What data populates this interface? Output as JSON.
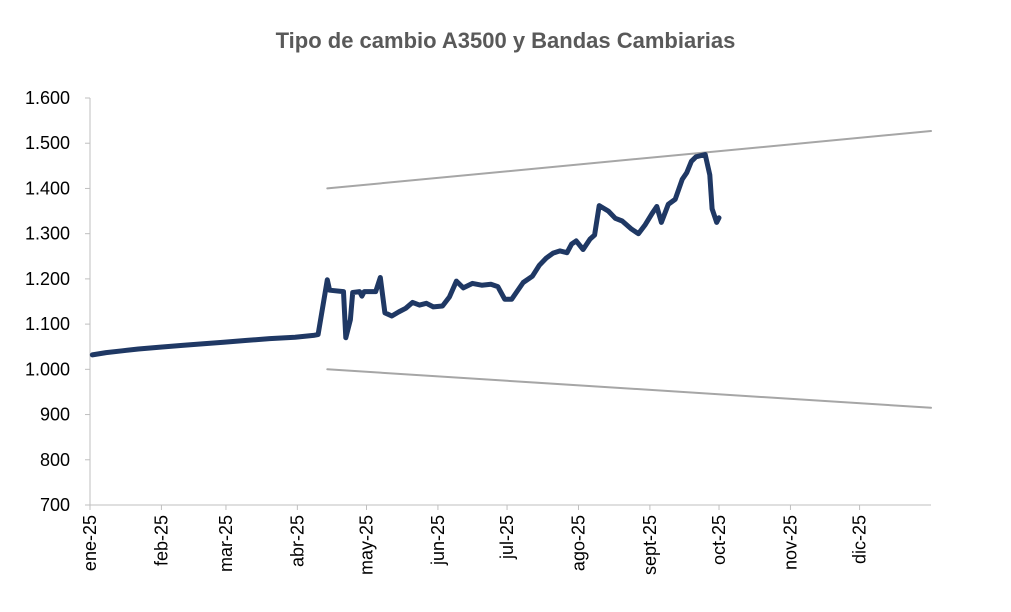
{
  "chart_data": {
    "type": "line",
    "title": "Tipo de cambio A3500 y Bandas Cambiarias",
    "xlabel": "",
    "ylabel": "",
    "ylim": [
      700,
      1600
    ],
    "y_ticks": [
      "700",
      "800",
      "900",
      "1.000",
      "1.100",
      "1.200",
      "1.300",
      "1.400",
      "1.500",
      "1.600"
    ],
    "x_ticks": [
      "ene-25",
      "feb-25",
      "mar-25",
      "abr-25",
      "may-25",
      "jun-25",
      "jul-25",
      "ago-25",
      "sept-25",
      "oct-25",
      "nov-25",
      "dic-25"
    ],
    "x_domain": [
      "2025-01-01",
      "2026-01-01"
    ],
    "legend": "none",
    "grid": false,
    "series": [
      {
        "color": "#1f3864",
        "points": [
          [
            "2025-01-02",
            1032
          ],
          [
            "2025-01-08",
            1037
          ],
          [
            "2025-01-15",
            1041
          ],
          [
            "2025-01-22",
            1045
          ],
          [
            "2025-01-31",
            1049
          ],
          [
            "2025-02-10",
            1053
          ],
          [
            "2025-02-20",
            1057
          ],
          [
            "2025-02-28",
            1060
          ],
          [
            "2025-03-10",
            1064
          ],
          [
            "2025-03-20",
            1068
          ],
          [
            "2025-03-31",
            1071
          ],
          [
            "2025-04-08",
            1075
          ],
          [
            "2025-04-10",
            1077
          ],
          [
            "2025-04-14",
            1198
          ],
          [
            "2025-04-15",
            1175
          ],
          [
            "2025-04-21",
            1172
          ],
          [
            "2025-04-22",
            1070
          ],
          [
            "2025-04-24",
            1110
          ],
          [
            "2025-04-25",
            1170
          ],
          [
            "2025-04-28",
            1172
          ],
          [
            "2025-04-29",
            1162
          ],
          [
            "2025-04-30",
            1172
          ],
          [
            "2025-05-05",
            1172
          ],
          [
            "2025-05-07",
            1203
          ],
          [
            "2025-05-09",
            1125
          ],
          [
            "2025-05-12",
            1118
          ],
          [
            "2025-05-15",
            1127
          ],
          [
            "2025-05-18",
            1135
          ],
          [
            "2025-05-21",
            1148
          ],
          [
            "2025-05-24",
            1142
          ],
          [
            "2025-05-27",
            1146
          ],
          [
            "2025-05-30",
            1138
          ],
          [
            "2025-06-03",
            1140
          ],
          [
            "2025-06-06",
            1160
          ],
          [
            "2025-06-09",
            1195
          ],
          [
            "2025-06-12",
            1180
          ],
          [
            "2025-06-16",
            1190
          ],
          [
            "2025-06-20",
            1186
          ],
          [
            "2025-06-24",
            1188
          ],
          [
            "2025-06-27",
            1183
          ],
          [
            "2025-06-30",
            1155
          ],
          [
            "2025-07-03",
            1155
          ],
          [
            "2025-07-05",
            1170
          ],
          [
            "2025-07-08",
            1192
          ],
          [
            "2025-07-12",
            1206
          ],
          [
            "2025-07-15",
            1230
          ],
          [
            "2025-07-18",
            1246
          ],
          [
            "2025-07-21",
            1257
          ],
          [
            "2025-07-24",
            1262
          ],
          [
            "2025-07-27",
            1258
          ],
          [
            "2025-07-29",
            1277
          ],
          [
            "2025-07-31",
            1284
          ],
          [
            "2025-08-03",
            1265
          ],
          [
            "2025-08-06",
            1288
          ],
          [
            "2025-08-08",
            1297
          ],
          [
            "2025-08-10",
            1362
          ],
          [
            "2025-08-14",
            1350
          ],
          [
            "2025-08-17",
            1334
          ],
          [
            "2025-08-20",
            1328
          ],
          [
            "2025-08-24",
            1310
          ],
          [
            "2025-08-27",
            1300
          ],
          [
            "2025-08-30",
            1320
          ],
          [
            "2025-09-02",
            1345
          ],
          [
            "2025-09-04",
            1360
          ],
          [
            "2025-09-06",
            1325
          ],
          [
            "2025-09-09",
            1365
          ],
          [
            "2025-09-12",
            1376
          ],
          [
            "2025-09-15",
            1420
          ],
          [
            "2025-09-17",
            1435
          ],
          [
            "2025-09-19",
            1460
          ],
          [
            "2025-09-21",
            1470
          ],
          [
            "2025-09-25",
            1475
          ],
          [
            "2025-09-27",
            1430
          ],
          [
            "2025-09-28",
            1355
          ],
          [
            "2025-09-30",
            1325
          ],
          [
            "2025-10-01",
            1335
          ]
        ]
      },
      {
        "color": "#a6a6a6",
        "points": [
          [
            "2025-04-14",
            1400
          ],
          [
            "2026-01-01",
            1527
          ]
        ]
      },
      {
        "color": "#a6a6a6",
        "points": [
          [
            "2025-04-14",
            1000
          ],
          [
            "2026-01-01",
            915
          ]
        ]
      }
    ]
  }
}
